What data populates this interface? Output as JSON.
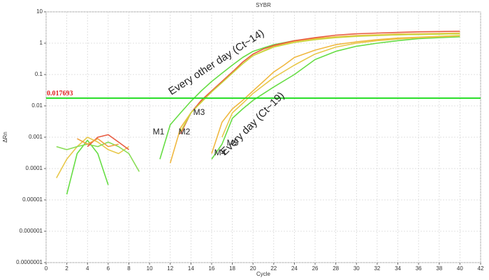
{
  "chart_data": {
    "type": "line",
    "title": "SYBR",
    "xlabel": "Cycle",
    "ylabel": "ΔRn",
    "log_y": true,
    "grid": true,
    "xlim": [
      0,
      42
    ],
    "xticks": [
      0,
      2,
      4,
      6,
      8,
      10,
      12,
      14,
      16,
      18,
      20,
      22,
      24,
      26,
      28,
      30,
      32,
      34,
      36,
      38,
      40,
      42
    ],
    "ylim": [
      1e-07,
      10
    ],
    "yticks": [
      10,
      1,
      0.1,
      0.01,
      0.001,
      0.0001,
      1e-05,
      1e-06,
      {
        "value": 1e-07,
        "label": "0.0000001"
      }
    ],
    "threshold": 0.017693,
    "threshold_color": "#22dd22",
    "threshold_label_color": "#e02020",
    "annotations": [
      "Every other day (Ct~14)",
      "Every day (Ct~19)",
      "M1",
      "M2",
      "M3",
      "M4",
      "M5"
    ],
    "series": [
      {
        "color": "#e8c84a",
        "x": [
          1,
          2,
          3,
          4,
          5,
          6,
          7,
          8
        ],
        "values": [
          5e-05,
          0.0002,
          0.0005,
          0.001,
          0.0007,
          0.0004,
          0.0003,
          0.0005
        ]
      },
      {
        "color": "#66dd44",
        "x": [
          2,
          3,
          4,
          5,
          6
        ],
        "values": [
          1.5e-05,
          0.0003,
          0.0008,
          0.0003,
          3e-05
        ]
      },
      {
        "color": "#88dd55",
        "x": [
          1,
          2,
          3,
          4,
          5,
          6,
          7,
          8,
          9
        ],
        "values": [
          0.0005,
          0.0004,
          0.0005,
          0.0006,
          0.0005,
          0.0007,
          0.0005,
          0.0003,
          8e-05
        ]
      },
      {
        "color": "#e85a40",
        "x": [
          4,
          5,
          6,
          7,
          8
        ],
        "values": [
          0.0005,
          0.001,
          0.0012,
          0.0007,
          0.0004
        ]
      },
      {
        "color": "#f0a040",
        "x": [
          3,
          4,
          5,
          6,
          7
        ],
        "values": [
          0.0009,
          0.0006,
          0.0009,
          0.0005,
          0.0006
        ]
      },
      {
        "color": "#66dd44",
        "x": [
          11,
          12,
          13,
          14,
          15,
          16,
          17,
          18,
          19,
          20,
          22,
          24,
          26,
          28,
          30,
          32,
          34,
          36,
          38,
          40
        ],
        "values": [
          0.0002,
          0.0025,
          0.006,
          0.014,
          0.03,
          0.06,
          0.11,
          0.2,
          0.35,
          0.55,
          0.9,
          1.2,
          1.4,
          1.55,
          1.7,
          1.8,
          1.85,
          1.9,
          1.95,
          2.0
        ]
      },
      {
        "color": "#f0b840",
        "x": [
          12,
          13,
          14,
          15,
          16,
          17,
          18,
          19,
          20,
          22,
          24,
          26,
          28,
          30,
          32,
          34,
          36,
          38,
          40
        ],
        "values": [
          0.00015,
          0.002,
          0.006,
          0.014,
          0.03,
          0.06,
          0.12,
          0.22,
          0.4,
          0.8,
          1.15,
          1.4,
          1.6,
          1.75,
          1.85,
          1.95,
          2.0,
          2.05,
          2.1
        ]
      },
      {
        "color": "#e85a40",
        "x": [
          13,
          14,
          15,
          16,
          17,
          18,
          19,
          20,
          21,
          22,
          24,
          26,
          28,
          30,
          32,
          34,
          36,
          38,
          40
        ],
        "values": [
          0.0013,
          0.006,
          0.015,
          0.03,
          0.06,
          0.12,
          0.25,
          0.45,
          0.65,
          0.85,
          1.2,
          1.5,
          1.8,
          2.0,
          2.1,
          2.2,
          2.3,
          2.35,
          2.4
        ]
      },
      {
        "color": "#c8d840",
        "x": [
          13,
          14,
          15,
          16,
          17,
          18,
          19,
          20,
          22,
          24,
          26,
          28,
          30,
          32,
          34,
          36,
          38,
          40
        ],
        "values": [
          0.0015,
          0.006,
          0.013,
          0.028,
          0.055,
          0.11,
          0.22,
          0.4,
          0.75,
          1.05,
          1.3,
          1.5,
          1.65,
          1.75,
          1.85,
          1.9,
          1.95,
          2.0
        ]
      },
      {
        "color": "#f0b840",
        "x": [
          16,
          17,
          18,
          19,
          20,
          21,
          22,
          23,
          24,
          26,
          28,
          30,
          32,
          34,
          36,
          38,
          40
        ],
        "values": [
          0.0003,
          0.003,
          0.008,
          0.015,
          0.03,
          0.06,
          0.12,
          0.2,
          0.35,
          0.6,
          0.9,
          1.1,
          1.3,
          1.45,
          1.55,
          1.65,
          1.75
        ]
      },
      {
        "color": "#66dd44",
        "x": [
          16,
          17,
          18,
          19,
          20,
          22,
          24,
          26,
          28,
          30,
          32,
          34,
          36,
          38,
          40
        ],
        "values": [
          0.0002,
          0.0006,
          0.004,
          0.008,
          0.015,
          0.04,
          0.1,
          0.3,
          0.55,
          0.8,
          1.0,
          1.2,
          1.4,
          1.5,
          1.6
        ]
      },
      {
        "color": "#e8c84a",
        "x": [
          17,
          18,
          19,
          20,
          22,
          24,
          26,
          28,
          30,
          32,
          34,
          36,
          38,
          40
        ],
        "values": [
          0.001,
          0.006,
          0.012,
          0.025,
          0.08,
          0.2,
          0.45,
          0.75,
          1.0,
          1.2,
          1.35,
          1.5,
          1.6,
          1.7
        ]
      }
    ]
  }
}
